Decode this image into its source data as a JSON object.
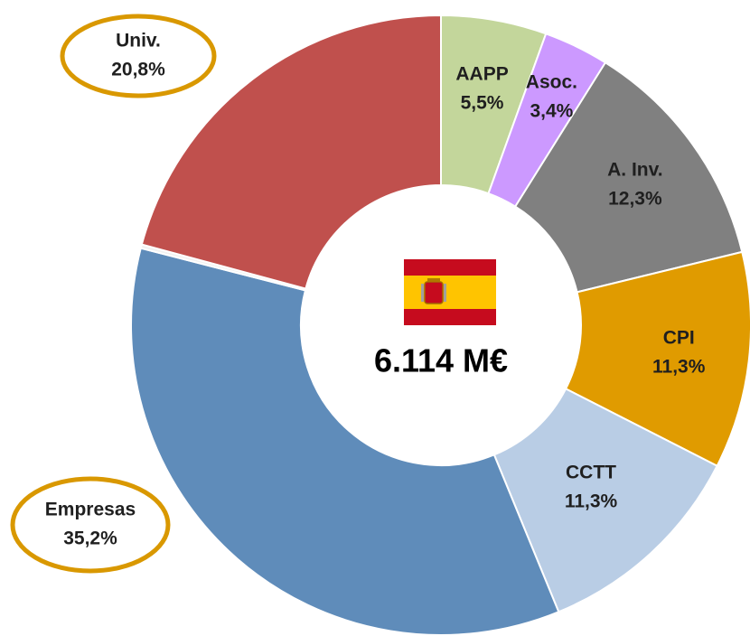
{
  "chart_data": {
    "type": "donut",
    "center_label": "6.114 M€",
    "categories": [
      "AAPP",
      "Asoc.",
      "A. Inv.",
      "CPI",
      "CCTT",
      "Empresas",
      null,
      "Univ."
    ],
    "values": [
      5.5,
      3.4,
      12.3,
      11.3,
      11.3,
      35.2,
      0.2,
      20.8
    ],
    "value_labels": [
      "5,5%",
      "3,4%",
      "12,3%",
      "11,3%",
      "11,3%",
      "35,2%",
      null,
      "20,8%"
    ],
    "colors": [
      "#c3d69b",
      "#cc99ff",
      "#808080",
      "#e09b00",
      "#b9cde5",
      "#5f8cba",
      "#f2f2f2",
      "#c0504d"
    ]
  }
}
